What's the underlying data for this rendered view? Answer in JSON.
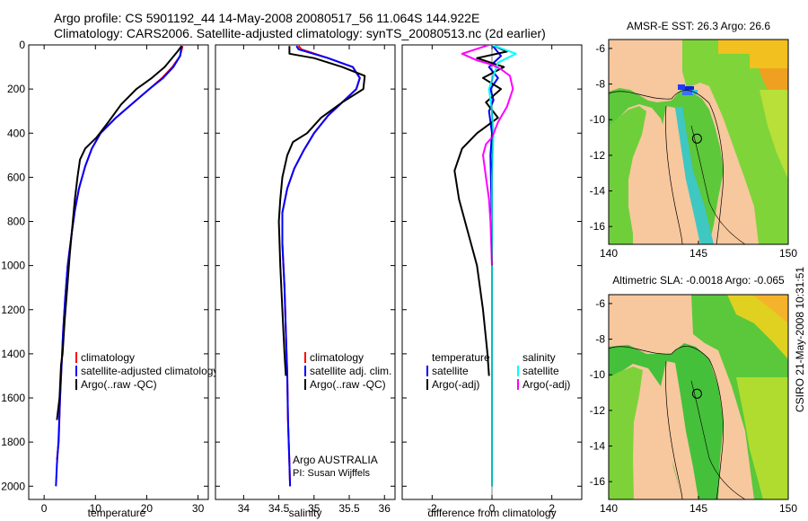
{
  "header": {
    "line1": "Argo profile: CS 5901192_44 14-May-2008 20080517_56 11.064S 144.922E",
    "line2": "Climatology: CARS2006. Satellite-adjusted climatology: synTS_20080513.nc (2d earlier)"
  },
  "footer": {
    "stamp": "CSIRO 21-May-2008 10:31:51"
  },
  "colors": {
    "climatology": "#ff0000",
    "satellite": "#0000ff",
    "argo": "#000000",
    "sal_satellite": "#00ffff",
    "sal_argo": "#ff00ff",
    "land": "#f7c79e"
  },
  "chart_data": [
    {
      "id": "temperature",
      "type": "line",
      "xlabel": "temperature",
      "ylabel": "",
      "xlim": [
        -3,
        32
      ],
      "ylim": [
        2060,
        0
      ],
      "xticks": [
        0,
        10,
        20,
        30
      ],
      "yticks": [
        0,
        200,
        400,
        600,
        800,
        1000,
        1200,
        1400,
        1600,
        1800,
        2000
      ],
      "legend": [
        "climatology",
        "satellite-adjusted climatology",
        "Argo(..raw -QC)"
      ],
      "series": [
        {
          "name": "climatology",
          "color": "#ff0000",
          "x": [
            27.0,
            26.5,
            25.0,
            23.0,
            20.5,
            17.5,
            14.0,
            11.0,
            9.3,
            8.0,
            6.8,
            6.0,
            5.4,
            4.6,
            4.1,
            3.7,
            3.4,
            3.1,
            2.85,
            2.5
          ],
          "y": [
            5,
            50,
            100,
            150,
            200,
            260,
            330,
            400,
            470,
            550,
            650,
            750,
            850,
            1000,
            1150,
            1300,
            1450,
            1600,
            1800,
            1880
          ]
        },
        {
          "name": "satellite-adjusted climatology",
          "color": "#0000ff",
          "x": [
            26.8,
            26.5,
            25.2,
            23.2,
            20.5,
            17.5,
            14.0,
            11.0,
            9.3,
            8.0,
            6.8,
            6.0,
            5.4,
            4.6,
            4.1,
            3.7,
            3.4,
            3.1,
            2.8,
            2.5,
            2.3
          ],
          "y": [
            5,
            50,
            100,
            150,
            200,
            260,
            330,
            400,
            470,
            550,
            650,
            750,
            850,
            1000,
            1150,
            1300,
            1450,
            1600,
            1800,
            1900,
            2000
          ]
        },
        {
          "name": "Argo(..raw -QC)",
          "color": "#000000",
          "x": [
            26.8,
            26.0,
            23.5,
            21.0,
            18.0,
            15.0,
            12.5,
            10.2,
            8.0,
            7.0,
            6.5,
            6.0,
            5.6,
            5.0,
            4.5,
            4.0,
            3.6,
            3.3,
            3.0,
            2.5
          ],
          "y": [
            5,
            30,
            100,
            150,
            200,
            270,
            350,
            420,
            470,
            520,
            600,
            700,
            800,
            950,
            1100,
            1250,
            1400,
            1450,
            1600,
            1700
          ]
        }
      ]
    },
    {
      "id": "salinity",
      "type": "line",
      "xlabel": "salinity",
      "xlim": [
        33.6,
        36.15
      ],
      "ylim": [
        2060,
        0
      ],
      "xticks": [
        34,
        34.5,
        35,
        35.5,
        36
      ],
      "legend": [
        "climatology",
        "satellite adj. clim.",
        "Argo(..raw -QC)"
      ],
      "annotation": [
        "Argo AUSTRALIA",
        "PI: Susan Wijffels"
      ],
      "series": [
        {
          "name": "climatology",
          "color": "#ff0000",
          "x": [
            34.78,
            34.82,
            35.2,
            35.55,
            35.65,
            35.6,
            35.4,
            35.2,
            35.0,
            34.85,
            34.72,
            34.62,
            34.55,
            34.55,
            34.58,
            34.6,
            34.62,
            34.63,
            34.65,
            34.66
          ],
          "y": [
            5,
            20,
            60,
            100,
            150,
            200,
            260,
            320,
            400,
            480,
            560,
            650,
            760,
            900,
            1100,
            1300,
            1500,
            1700,
            1900,
            2000
          ]
        },
        {
          "name": "satellite adj. clim.",
          "color": "#0000ff",
          "x": [
            34.75,
            34.78,
            35.2,
            35.55,
            35.65,
            35.6,
            35.4,
            35.2,
            35.0,
            34.85,
            34.72,
            34.62,
            34.55,
            34.55,
            34.58,
            34.6,
            34.62,
            34.63,
            34.65,
            34.66
          ],
          "y": [
            5,
            20,
            60,
            100,
            150,
            200,
            260,
            320,
            400,
            480,
            560,
            650,
            760,
            900,
            1100,
            1300,
            1500,
            1700,
            1900,
            2000
          ]
        },
        {
          "name": "Argo(..raw -QC)",
          "color": "#000000",
          "x": [
            34.65,
            34.65,
            35.0,
            35.4,
            35.72,
            35.7,
            35.4,
            35.1,
            34.9,
            34.7,
            34.62,
            34.55,
            34.52,
            34.5,
            34.52,
            34.55,
            34.58,
            34.6
          ],
          "y": [
            5,
            40,
            60,
            100,
            140,
            200,
            260,
            330,
            400,
            440,
            500,
            600,
            700,
            800,
            1000,
            1200,
            1400,
            1500
          ]
        }
      ]
    },
    {
      "id": "difference",
      "type": "line",
      "xlabel": "difference from climatology",
      "xlim": [
        -3.0,
        3.0
      ],
      "ylim": [
        2060,
        0
      ],
      "xticks": [
        -2,
        0,
        2
      ],
      "legend_temperature": [
        "temperature",
        "satellite",
        "Argo(-adj)"
      ],
      "legend_salinity": [
        "salinity",
        "satellite",
        "Argo(-adj)"
      ],
      "series": [
        {
          "name": "temperature satellite",
          "color": "#0000ff",
          "x": [
            0.0,
            0.3,
            -0.1,
            0.2,
            -0.05,
            0.05,
            -0.1,
            0.0,
            -0.05,
            -0.02,
            0.0,
            0.0,
            0.0
          ],
          "y": [
            0,
            50,
            100,
            150,
            200,
            250,
            300,
            400,
            500,
            700,
            1000,
            1500,
            2000
          ]
        },
        {
          "name": "temperature Argo(-adj)",
          "color": "#000000",
          "x": [
            0.0,
            0.5,
            -0.5,
            0.4,
            -0.3,
            0.3,
            -0.2,
            0.2,
            -0.5,
            -1.0,
            -1.25,
            -1.1,
            -0.8,
            -0.5,
            -0.3,
            -0.15,
            -0.1
          ],
          "y": [
            0,
            30,
            60,
            100,
            150,
            200,
            260,
            330,
            400,
            470,
            570,
            700,
            850,
            1000,
            1200,
            1400,
            1500
          ]
        },
        {
          "name": "salinity satellite",
          "color": "#00ffff",
          "x": [
            0.0,
            0.8,
            0.2,
            0.1,
            -0.1,
            0.0,
            0.05,
            0.0,
            0.0,
            0.0,
            0.0
          ],
          "y": [
            0,
            40,
            80,
            120,
            200,
            300,
            400,
            600,
            1000,
            1500,
            2000
          ]
        },
        {
          "name": "salinity Argo(-adj)",
          "color": "#ff00ff",
          "x": [
            -0.1,
            -1.0,
            -0.5,
            0.0,
            0.3,
            0.6,
            0.7,
            0.5,
            0.2,
            0.0,
            -0.2,
            -0.3,
            -0.2,
            -0.1,
            -0.05,
            0.0
          ],
          "y": [
            0,
            40,
            70,
            90,
            110,
            140,
            200,
            280,
            350,
            420,
            450,
            500,
            600,
            700,
            800,
            1000
          ]
        }
      ]
    },
    {
      "id": "sst-map",
      "type": "heatmap",
      "title": "AMSR-E SST: 26.3 Argo: 26.6",
      "xlim": [
        140,
        150
      ],
      "ylim": [
        -17,
        -5.5
      ],
      "xticks": [
        140,
        145,
        150
      ],
      "yticks": [
        -6,
        -8,
        -10,
        -12,
        -14,
        -16
      ],
      "argo_position": [
        144.922,
        -11.064
      ]
    },
    {
      "id": "sla-map",
      "type": "heatmap",
      "title": "Altimetric SLA: -0.0018 Argo: -0.065",
      "xlim": [
        140,
        150
      ],
      "ylim": [
        -17,
        -5.5
      ],
      "xticks": [
        140,
        145,
        150
      ],
      "yticks": [
        -6,
        -8,
        -10,
        -12,
        -14,
        -16
      ],
      "argo_position": [
        144.922,
        -11.064
      ]
    }
  ]
}
